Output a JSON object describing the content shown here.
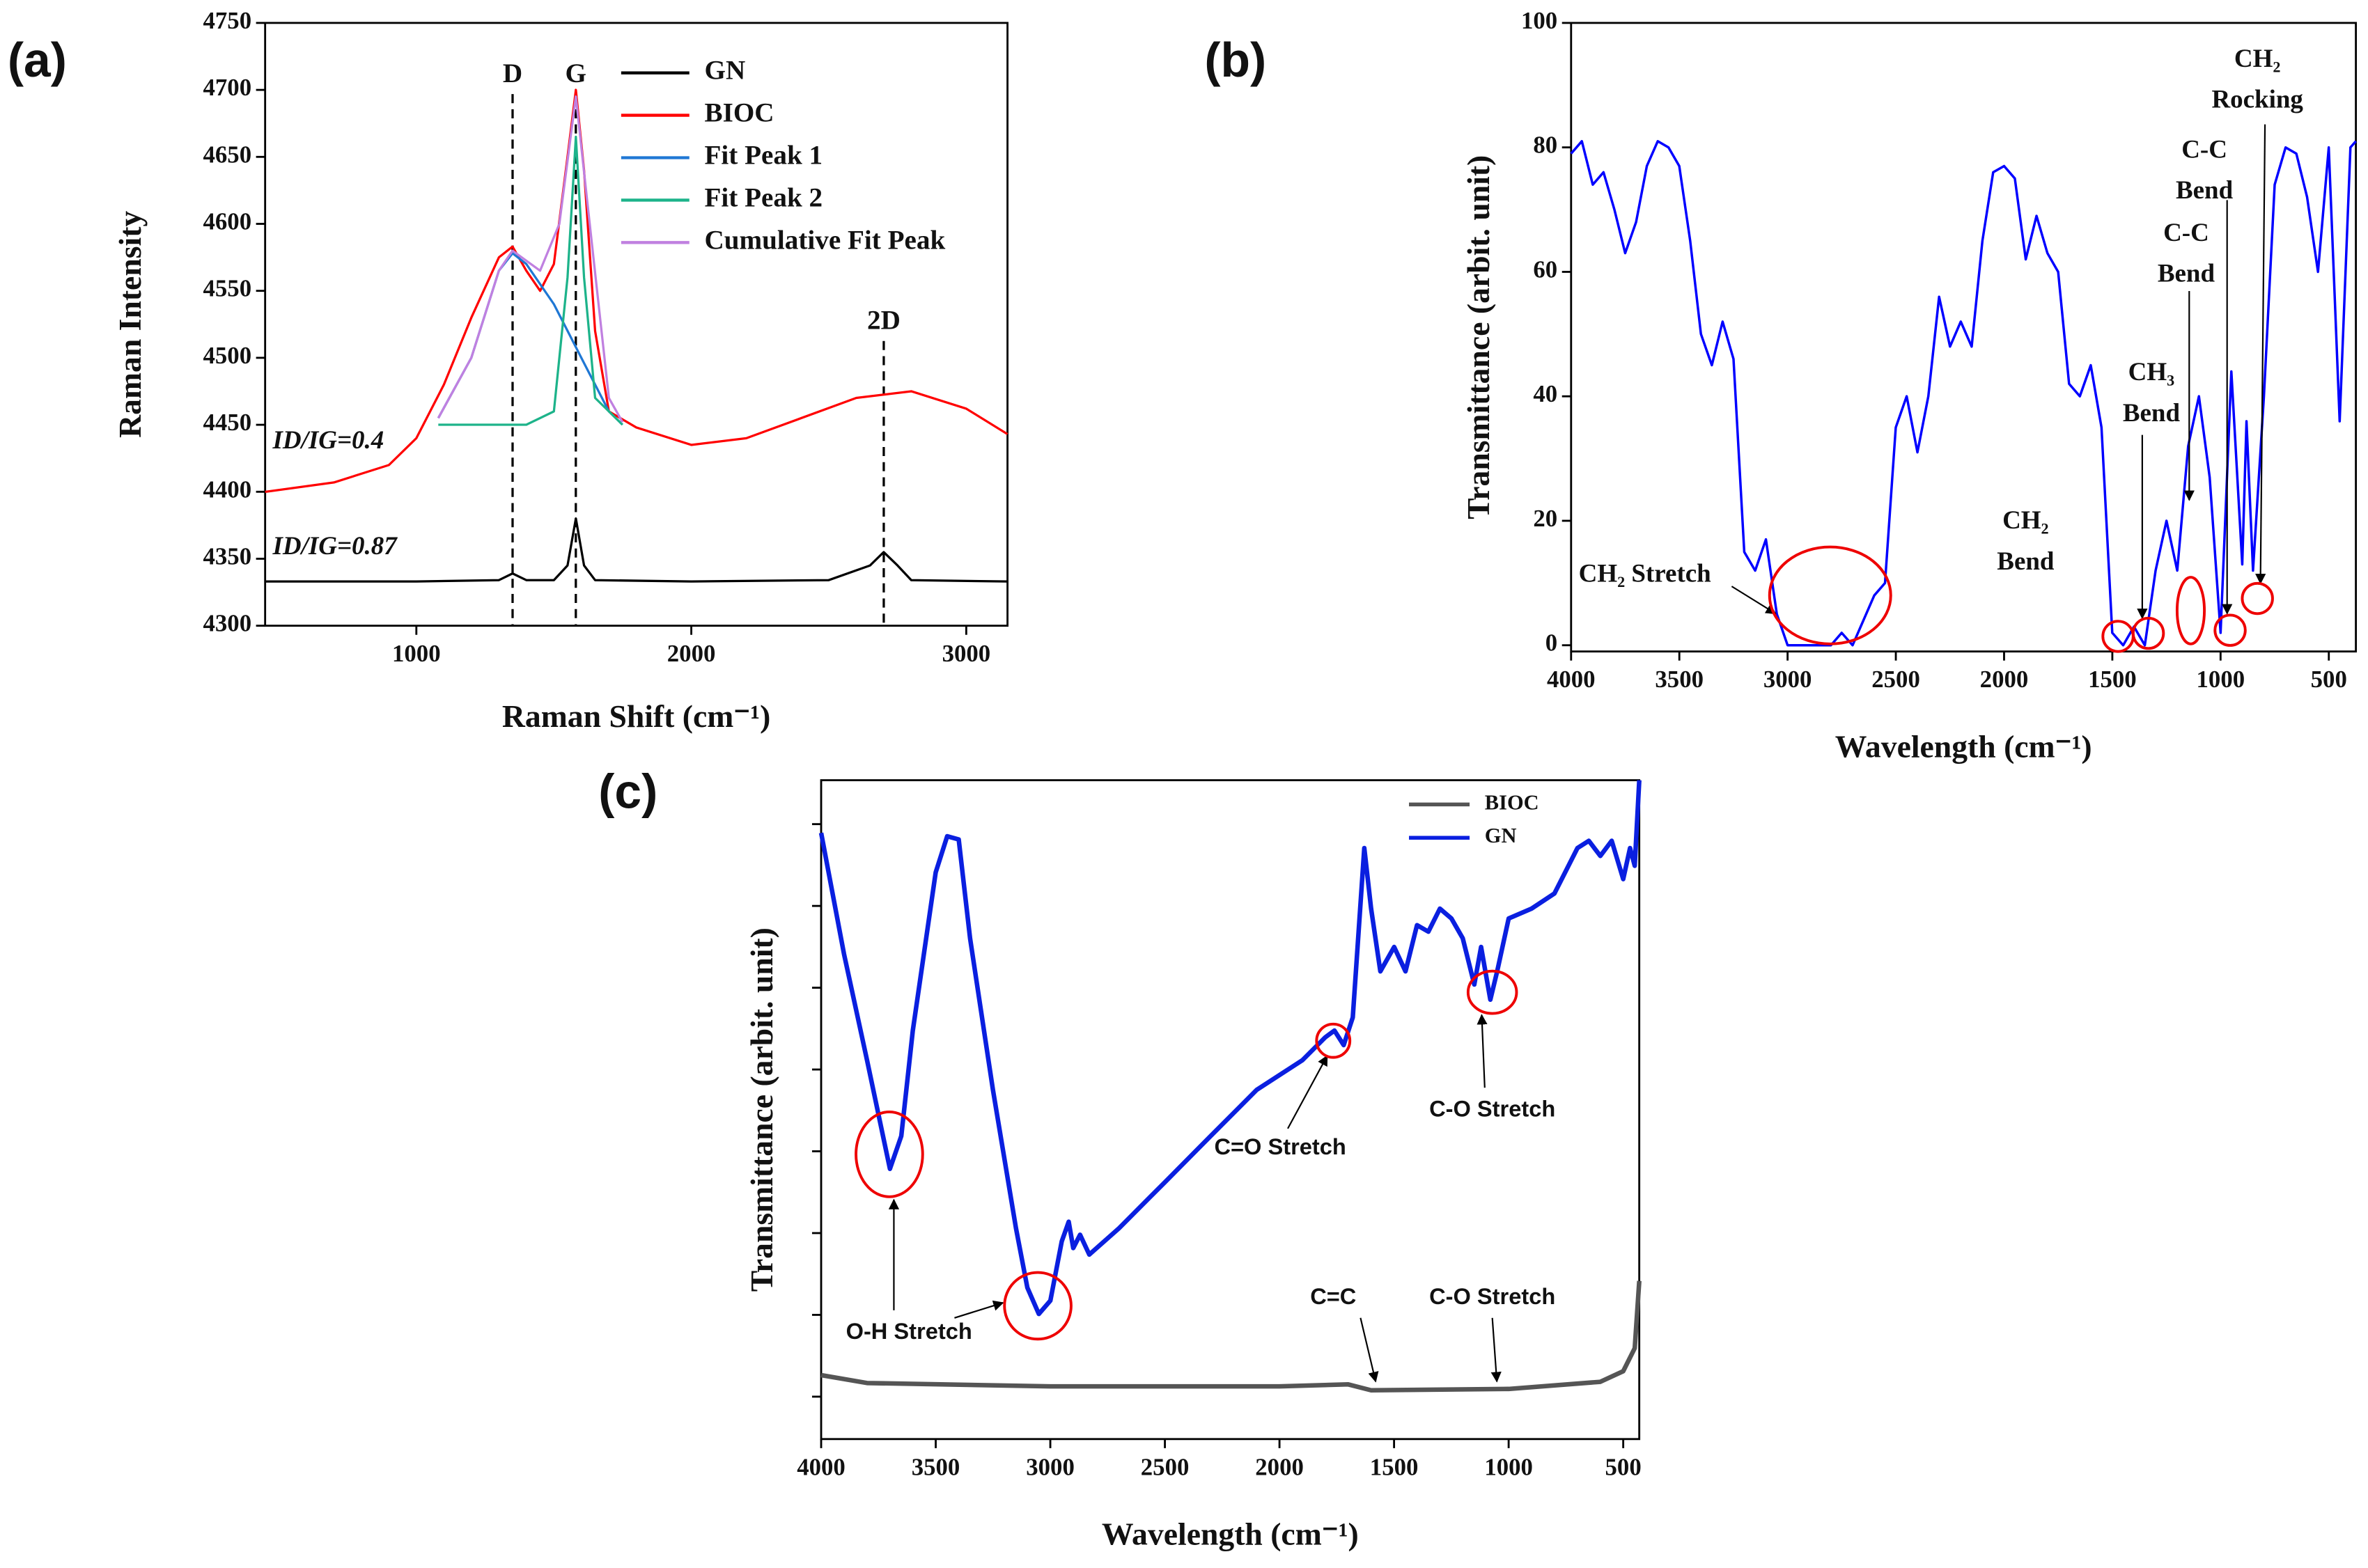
{
  "chart_data": [
    {
      "type": "line",
      "panel": "(a)",
      "xlabel": "Raman Shift (cm⁻¹)",
      "ylabel": "Raman Intensity",
      "xlim": [
        450,
        3150
      ],
      "xticks": [
        1000,
        2000,
        3000
      ],
      "ylim": [
        4300,
        4750
      ],
      "yticks": [
        4300,
        4350,
        4400,
        4450,
        4500,
        4550,
        4600,
        4650,
        4700,
        4750
      ],
      "series": [
        {
          "name": "GN",
          "color": "#000000",
          "x": [
            450,
            1000,
            1300,
            1350,
            1400,
            1500,
            1550,
            1580,
            1610,
            1650,
            2000,
            2500,
            2650,
            2700,
            2750,
            2800,
            3150
          ],
          "values": [
            4333,
            4333,
            4334,
            4339,
            4334,
            4334,
            4345,
            4380,
            4345,
            4334,
            4333,
            4334,
            4345,
            4355,
            4345,
            4334,
            4333
          ]
        },
        {
          "name": "BIOC",
          "color": "#ff0000",
          "x": [
            450,
            700,
            900,
            1000,
            1100,
            1200,
            1300,
            1350,
            1400,
            1450,
            1500,
            1550,
            1580,
            1610,
            1650,
            1700,
            1800,
            2000,
            2200,
            2400,
            2600,
            2800,
            3000,
            3150
          ],
          "values": [
            4400,
            4407,
            4420,
            4440,
            4480,
            4530,
            4575,
            4583,
            4565,
            4550,
            4570,
            4650,
            4700,
            4640,
            4520,
            4460,
            4448,
            4435,
            4440,
            4455,
            4470,
            4475,
            4462,
            4443
          ]
        },
        {
          "name": "Fit Peak 1",
          "color": "#1f77d4",
          "x": [
            1080,
            1200,
            1300,
            1350,
            1400,
            1500,
            1600,
            1700,
            1750
          ],
          "values": [
            4455,
            4500,
            4565,
            4578,
            4570,
            4540,
            4500,
            4460,
            4450
          ]
        },
        {
          "name": "Fit Peak 2",
          "color": "#1db38a",
          "x": [
            1080,
            1400,
            1500,
            1550,
            1580,
            1610,
            1650,
            1750
          ],
          "values": [
            4450,
            4450,
            4460,
            4560,
            4665,
            4560,
            4470,
            4450
          ]
        },
        {
          "name": "Cumulative Fit Peak",
          "color": "#c080e0",
          "x": [
            1080,
            1200,
            1300,
            1350,
            1450,
            1520,
            1580,
            1620,
            1700,
            1750
          ],
          "values": [
            4455,
            4500,
            4565,
            4580,
            4565,
            4600,
            4695,
            4620,
            4470,
            4452
          ]
        }
      ],
      "peaks": [
        {
          "label": "D",
          "x": 1350
        },
        {
          "label": "G",
          "x": 1580
        },
        {
          "label": "2D",
          "x": 2700
        }
      ],
      "annotations": [
        {
          "lines": [
            "ID/IG=0.4"
          ]
        },
        {
          "lines": [
            "ID/IG=0.87"
          ]
        }
      ]
    },
    {
      "type": "line",
      "panel": "(b)",
      "xlabel": "Wavelength (cm⁻¹)",
      "ylabel": "Transmittance (arbit. unit)",
      "xlim": [
        4000,
        375
      ],
      "xticks": [
        4000,
        3500,
        3000,
        2500,
        2000,
        1500,
        1000,
        500
      ],
      "ylim": [
        -1,
        100
      ],
      "yticks": [
        0,
        20,
        40,
        60,
        80,
        100
      ],
      "series": [
        {
          "color": "#0000ff",
          "x": [
            4000,
            3950,
            3900,
            3850,
            3800,
            3750,
            3700,
            3650,
            3600,
            3550,
            3500,
            3450,
            3400,
            3350,
            3300,
            3250,
            3200,
            3150,
            3100,
            3050,
            3000,
            2900,
            2800,
            2750,
            2700,
            2600,
            2550,
            2500,
            2450,
            2400,
            2350,
            2300,
            2250,
            2200,
            2150,
            2100,
            2050,
            2000,
            1950,
            1900,
            1850,
            1800,
            1750,
            1700,
            1650,
            1600,
            1550,
            1500,
            1450,
            1400,
            1350,
            1300,
            1250,
            1200,
            1150,
            1100,
            1050,
            1000,
            950,
            900,
            880,
            850,
            800,
            750,
            700,
            650,
            600,
            550,
            500,
            450,
            400,
            375
          ],
          "values": [
            79,
            81,
            74,
            76,
            70,
            63,
            68,
            77,
            81,
            80,
            77,
            65,
            50,
            45,
            52,
            46,
            15,
            12,
            17,
            5,
            0,
            0,
            0,
            2,
            0,
            8,
            10,
            35,
            40,
            31,
            40,
            56,
            48,
            52,
            48,
            65,
            76,
            77,
            75,
            62,
            69,
            63,
            60,
            42,
            40,
            45,
            35,
            2,
            0,
            3,
            0,
            12,
            20,
            12,
            32,
            40,
            27,
            2,
            44,
            13,
            36,
            12,
            40,
            74,
            80,
            79,
            72,
            60,
            80,
            36,
            80,
            81
          ]
        }
      ],
      "annotations": [
        {
          "lines": [
            "CH₂ Stretch"
          ]
        },
        {
          "lines": [
            "CH₂",
            "Bend"
          ]
        },
        {
          "lines": [
            "CH₃",
            "Bend"
          ]
        },
        {
          "lines": [
            "C-C",
            "Bend"
          ]
        },
        {
          "lines": [
            "C-C",
            "Bend"
          ]
        },
        {
          "lines": [
            "CH₂",
            "Rocking"
          ]
        }
      ]
    },
    {
      "type": "line",
      "panel": "(c)",
      "xlabel": "Wavelength (cm⁻¹)",
      "ylabel": "Transmittance (arbit. unit)",
      "xlim": [
        4000,
        430
      ],
      "xticks": [
        4000,
        3500,
        3000,
        2500,
        2000,
        1500,
        1000,
        500
      ],
      "ylim": [
        0,
        100
      ],
      "series": [
        {
          "name": "BIOC",
          "color": "#555555",
          "x": [
            4000,
            3800,
            3000,
            2000,
            1700,
            1600,
            1000,
            600,
            500,
            450,
            430
          ],
          "values": [
            9.7,
            8.5,
            8,
            8,
            8.3,
            7.4,
            7.6,
            8.7,
            10.3,
            13.8,
            24
          ]
        },
        {
          "name": "GN",
          "color": "#0a1fe0",
          "x": [
            4000,
            3900,
            3800,
            3700,
            3650,
            3600,
            3500,
            3450,
            3400,
            3350,
            3250,
            3150,
            3100,
            3050,
            3000,
            2950,
            2920,
            2900,
            2870,
            2830,
            2700,
            2500,
            2300,
            2100,
            1900,
            1800,
            1760,
            1720,
            1680,
            1630,
            1600,
            1560,
            1500,
            1450,
            1400,
            1350,
            1300,
            1250,
            1200,
            1150,
            1120,
            1080,
            1050,
            1000,
            900,
            800,
            700,
            650,
            600,
            550,
            500,
            470,
            450,
            430
          ],
          "values": [
            92,
            73.6,
            57.5,
            41,
            46,
            62,
            86,
            91.5,
            91,
            76,
            53,
            32,
            23,
            19,
            21,
            30,
            33,
            29,
            31,
            28,
            32,
            39,
            46,
            53,
            57.5,
            61,
            62,
            59.8,
            64,
            89.7,
            80.5,
            71,
            74.7,
            71,
            78,
            77,
            80.5,
            79,
            76,
            69,
            74.7,
            66.7,
            71,
            79,
            80.5,
            82.8,
            89.7,
            90.8,
            88.5,
            90.8,
            85,
            89.7,
            87,
            100
          ]
        }
      ],
      "annotations": [
        {
          "lines": [
            "O-H Stretch"
          ]
        },
        {
          "lines": [
            "C=O Stretch"
          ]
        },
        {
          "lines": [
            "C-O Stretch"
          ]
        },
        {
          "lines": [
            "C=C"
          ]
        },
        {
          "lines": [
            "C-O Stretch"
          ]
        }
      ]
    }
  ]
}
